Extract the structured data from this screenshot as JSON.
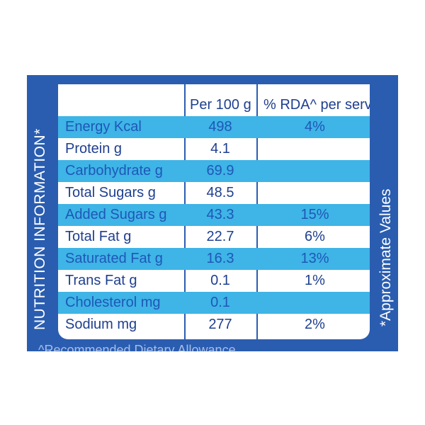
{
  "side_left_title": "NUTRITION INFORMATION*",
  "side_right_note": "*Approximate Values",
  "footnote": "^Recommended Dietary Allowance",
  "header": {
    "per100": "Per 100 g",
    "rda": "% RDA^ per serve"
  },
  "rows": [
    {
      "name": "Energy Kcal",
      "per100": "498",
      "rda": "4%"
    },
    {
      "name": "Protein g",
      "per100": "4.1",
      "rda": ""
    },
    {
      "name": "Carbohydrate g",
      "per100": "69.9",
      "rda": ""
    },
    {
      "name": "Total Sugars g",
      "per100": "48.5",
      "rda": ""
    },
    {
      "name": "Added Sugars g",
      "per100": "43.3",
      "rda": "15%"
    },
    {
      "name": "Total Fat g",
      "per100": "22.7",
      "rda": "6%"
    },
    {
      "name": "Saturated Fat g",
      "per100": "16.3",
      "rda": "13%"
    },
    {
      "name": "Trans Fat g",
      "per100": "0.1",
      "rda": "1%"
    },
    {
      "name": "Cholesterol mg",
      "per100": "0.1",
      "rda": ""
    },
    {
      "name": "Sodium mg",
      "per100": "277",
      "rda": "2%"
    }
  ],
  "colors": {
    "panel": "#2a5db0",
    "stripe": "#3fb4e6",
    "text": "#1f3f8f"
  }
}
